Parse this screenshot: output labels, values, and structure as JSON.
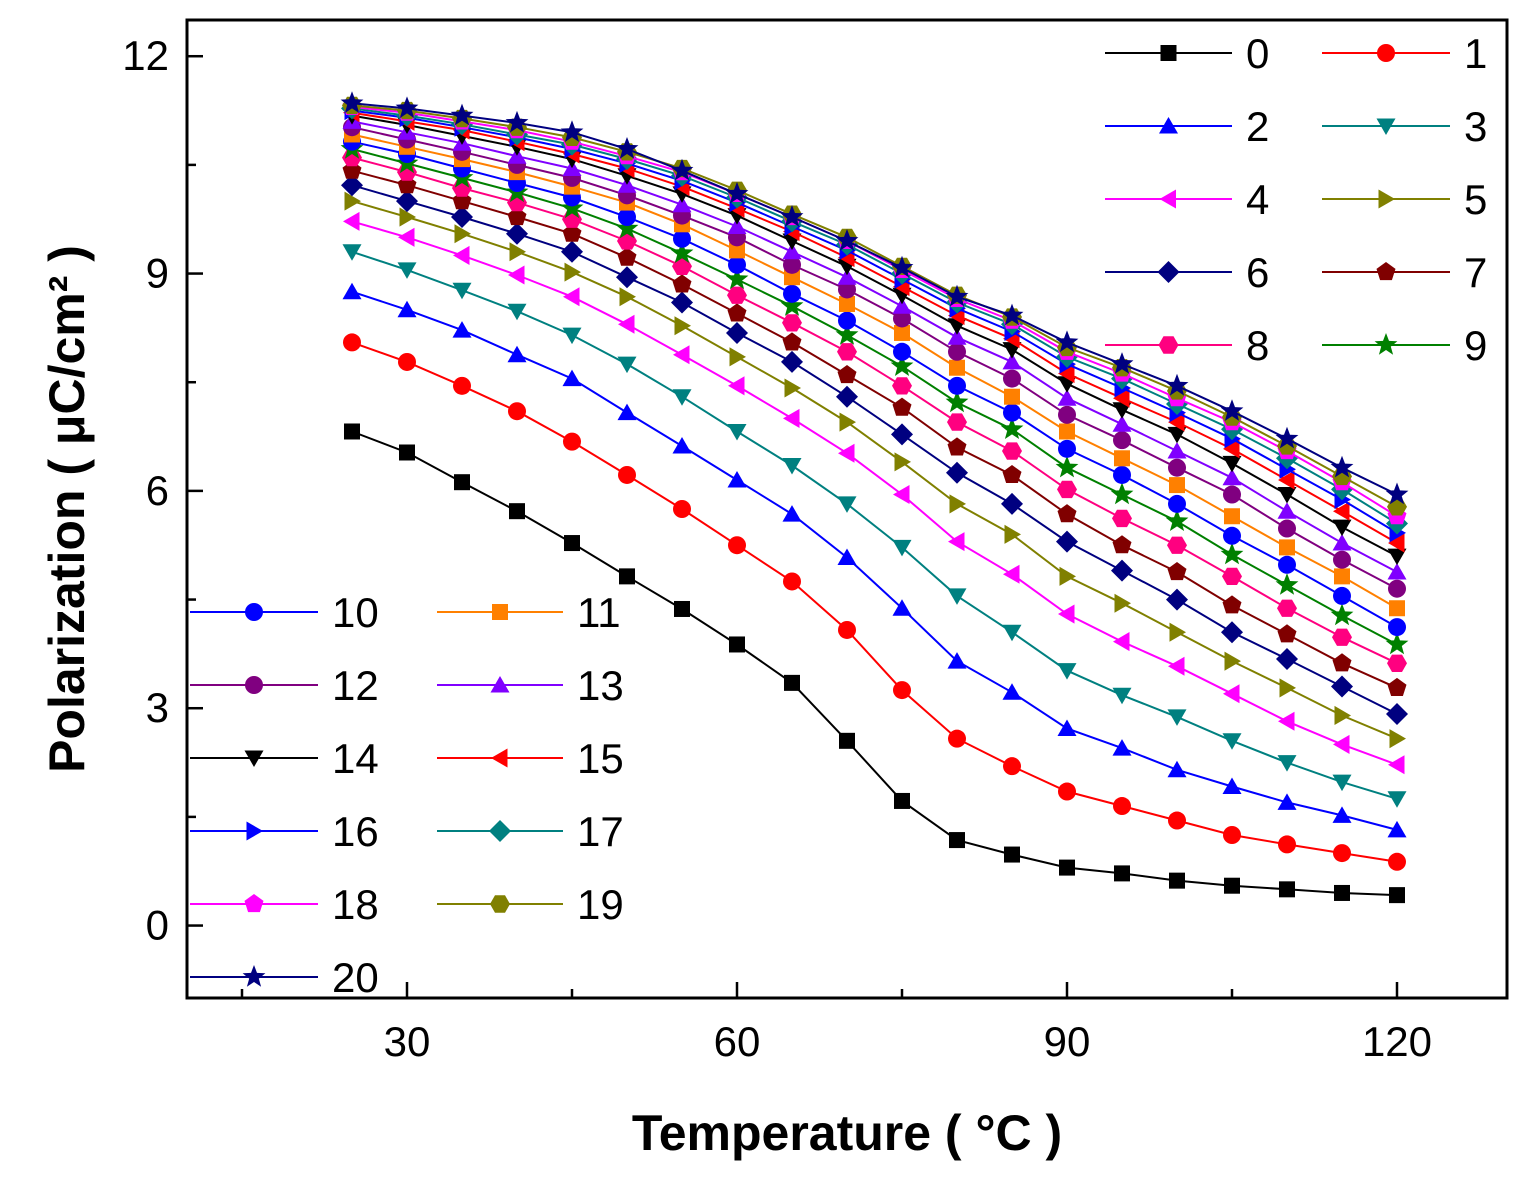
{
  "chart_data": {
    "type": "line",
    "xlabel": "Temperature ( °C )",
    "ylabel": "Polarization ( μC/cm² )",
    "xlim": [
      10,
      130
    ],
    "ylim": [
      -1,
      12.5
    ],
    "x_ticks": [
      "30",
      "60",
      "90",
      "120"
    ],
    "x_tick_values": [
      30,
      60,
      90,
      120
    ],
    "y_ticks": [
      "0",
      "3",
      "6",
      "9",
      "12"
    ],
    "y_tick_values": [
      0,
      3,
      6,
      9,
      12
    ],
    "x": [
      25,
      30,
      35,
      40,
      45,
      50,
      55,
      60,
      65,
      70,
      75,
      80,
      85,
      90,
      95,
      100,
      105,
      110,
      115,
      120
    ],
    "grid": false,
    "legend_placement": "top-right and lower-left",
    "series": [
      {
        "name": "0",
        "color": "#000000",
        "marker": "square",
        "values": [
          6.82,
          6.53,
          6.12,
          5.72,
          5.28,
          4.82,
          4.37,
          3.88,
          3.35,
          2.55,
          1.72,
          1.18,
          0.98,
          0.8,
          0.72,
          0.62,
          0.55,
          0.5,
          0.45,
          0.42
        ]
      },
      {
        "name": "1",
        "color": "#ff0000",
        "marker": "circle",
        "values": [
          8.05,
          7.78,
          7.45,
          7.1,
          6.68,
          6.22,
          5.75,
          5.25,
          4.75,
          4.08,
          3.25,
          2.58,
          2.2,
          1.85,
          1.65,
          1.45,
          1.25,
          1.12,
          1.0,
          0.88
        ]
      },
      {
        "name": "2",
        "color": "#0000ff",
        "marker": "triangle-up",
        "values": [
          8.75,
          8.5,
          8.22,
          7.88,
          7.55,
          7.08,
          6.62,
          6.15,
          5.68,
          5.08,
          4.38,
          3.65,
          3.22,
          2.72,
          2.45,
          2.15,
          1.92,
          1.7,
          1.52,
          1.32
        ]
      },
      {
        "name": "3",
        "color": "#008080",
        "marker": "triangle-down",
        "values": [
          9.3,
          9.05,
          8.77,
          8.48,
          8.15,
          7.75,
          7.3,
          6.82,
          6.35,
          5.82,
          5.22,
          4.55,
          4.05,
          3.52,
          3.18,
          2.88,
          2.55,
          2.25,
          1.98,
          1.75
        ]
      },
      {
        "name": "4",
        "color": "#ff00ff",
        "marker": "triangle-left",
        "values": [
          9.72,
          9.5,
          9.25,
          8.98,
          8.68,
          8.3,
          7.88,
          7.45,
          7.0,
          6.52,
          5.95,
          5.3,
          4.85,
          4.3,
          3.92,
          3.58,
          3.2,
          2.82,
          2.5,
          2.22
        ]
      },
      {
        "name": "5",
        "color": "#808000",
        "marker": "triangle-right",
        "values": [
          10.0,
          9.78,
          9.55,
          9.3,
          9.02,
          8.68,
          8.28,
          7.85,
          7.42,
          6.95,
          6.4,
          5.82,
          5.4,
          4.82,
          4.45,
          4.05,
          3.65,
          3.28,
          2.9,
          2.58
        ]
      },
      {
        "name": "6",
        "color": "#000080",
        "marker": "diamond",
        "values": [
          10.22,
          10.0,
          9.78,
          9.55,
          9.3,
          8.95,
          8.6,
          8.18,
          7.78,
          7.3,
          6.78,
          6.25,
          5.82,
          5.3,
          4.9,
          4.5,
          4.05,
          3.68,
          3.3,
          2.92
        ]
      },
      {
        "name": "7",
        "color": "#800000",
        "marker": "pentagon",
        "values": [
          10.42,
          10.22,
          10.0,
          9.78,
          9.55,
          9.22,
          8.85,
          8.45,
          8.05,
          7.6,
          7.15,
          6.6,
          6.22,
          5.68,
          5.25,
          4.88,
          4.42,
          4.02,
          3.62,
          3.28
        ]
      },
      {
        "name": "8",
        "color": "#ff0080",
        "marker": "hexagon",
        "values": [
          10.6,
          10.4,
          10.18,
          9.98,
          9.75,
          9.45,
          9.1,
          8.7,
          8.32,
          7.92,
          7.45,
          6.95,
          6.55,
          6.02,
          5.62,
          5.25,
          4.82,
          4.38,
          3.98,
          3.62
        ]
      },
      {
        "name": "9",
        "color": "#008000",
        "marker": "star",
        "values": [
          10.72,
          10.52,
          10.32,
          10.12,
          9.9,
          9.62,
          9.28,
          8.92,
          8.55,
          8.15,
          7.72,
          7.22,
          6.85,
          6.32,
          5.95,
          5.58,
          5.12,
          4.7,
          4.28,
          3.88
        ]
      },
      {
        "name": "10",
        "color": "#0000ff",
        "marker": "circle",
        "values": [
          10.82,
          10.65,
          10.45,
          10.25,
          10.05,
          9.78,
          9.48,
          9.12,
          8.72,
          8.35,
          7.92,
          7.45,
          7.08,
          6.58,
          6.22,
          5.82,
          5.38,
          4.98,
          4.55,
          4.12
        ]
      },
      {
        "name": "11",
        "color": "#ff8000",
        "marker": "square",
        "values": [
          10.92,
          10.75,
          10.58,
          10.4,
          10.2,
          9.98,
          9.68,
          9.32,
          8.95,
          8.58,
          8.18,
          7.7,
          7.3,
          6.82,
          6.45,
          6.08,
          5.65,
          5.22,
          4.82,
          4.38
        ]
      },
      {
        "name": "12",
        "color": "#800080",
        "marker": "circle",
        "values": [
          11.02,
          10.85,
          10.68,
          10.5,
          10.32,
          10.08,
          9.8,
          9.5,
          9.12,
          8.78,
          8.38,
          7.92,
          7.55,
          7.05,
          6.7,
          6.32,
          5.95,
          5.48,
          5.05,
          4.65
        ]
      },
      {
        "name": "13",
        "color": "#8000ff",
        "marker": "triangle-up",
        "values": [
          11.1,
          10.95,
          10.8,
          10.62,
          10.45,
          10.22,
          9.95,
          9.65,
          9.3,
          8.95,
          8.55,
          8.12,
          7.78,
          7.28,
          6.92,
          6.55,
          6.18,
          5.72,
          5.28,
          4.88
        ]
      },
      {
        "name": "14",
        "color": "#000000",
        "marker": "triangle-down",
        "values": [
          11.18,
          11.05,
          10.9,
          10.75,
          10.58,
          10.35,
          10.1,
          9.8,
          9.45,
          9.1,
          8.7,
          8.28,
          7.95,
          7.48,
          7.12,
          6.78,
          6.38,
          5.95,
          5.5,
          5.1
        ]
      },
      {
        "name": "15",
        "color": "#ff0000",
        "marker": "triangle-left",
        "values": [
          11.22,
          11.1,
          10.98,
          10.82,
          10.65,
          10.45,
          10.2,
          9.9,
          9.58,
          9.22,
          8.82,
          8.42,
          8.1,
          7.62,
          7.28,
          6.95,
          6.58,
          6.15,
          5.72,
          5.28
        ]
      },
      {
        "name": "16",
        "color": "#0000ff",
        "marker": "triangle-right",
        "values": [
          11.25,
          11.15,
          11.02,
          10.88,
          10.72,
          10.52,
          10.28,
          9.98,
          9.65,
          9.32,
          8.92,
          8.52,
          8.2,
          7.75,
          7.42,
          7.08,
          6.72,
          6.3,
          5.88,
          5.42
        ]
      },
      {
        "name": "17",
        "color": "#008080",
        "marker": "diamond",
        "values": [
          11.28,
          11.18,
          11.06,
          10.92,
          10.78,
          10.58,
          10.35,
          10.05,
          9.72,
          9.4,
          9.0,
          8.6,
          8.3,
          7.85,
          7.55,
          7.2,
          6.85,
          6.45,
          6.02,
          5.55
        ]
      },
      {
        "name": "18",
        "color": "#ff00ff",
        "marker": "pentagon",
        "values": [
          11.3,
          11.22,
          11.1,
          10.98,
          10.82,
          10.62,
          10.4,
          10.1,
          9.78,
          9.45,
          9.05,
          8.65,
          8.35,
          7.92,
          7.62,
          7.28,
          6.95,
          6.55,
          6.12,
          5.65
        ]
      },
      {
        "name": "19",
        "color": "#808000",
        "marker": "hexagon",
        "values": [
          11.32,
          11.25,
          11.14,
          11.02,
          10.88,
          10.68,
          10.45,
          10.15,
          9.82,
          9.5,
          9.1,
          8.7,
          8.4,
          7.98,
          7.7,
          7.38,
          7.02,
          6.62,
          6.2,
          5.78
        ]
      },
      {
        "name": "20",
        "color": "#000080",
        "marker": "star",
        "values": [
          11.35,
          11.28,
          11.18,
          11.08,
          10.95,
          10.72,
          10.42,
          10.1,
          9.78,
          9.45,
          9.08,
          8.68,
          8.42,
          8.05,
          7.75,
          7.45,
          7.1,
          6.72,
          6.32,
          5.95
        ]
      }
    ]
  }
}
